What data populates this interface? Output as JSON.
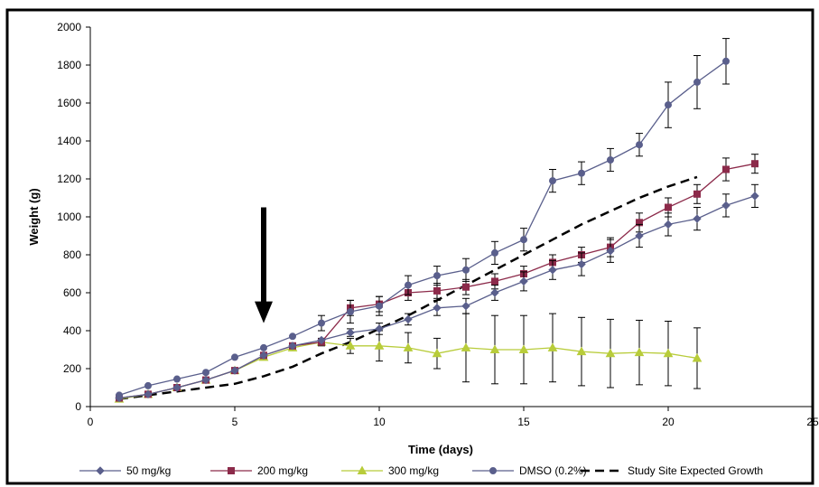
{
  "chart_data": {
    "type": "line",
    "title": "",
    "xlabel": "Time (days)",
    "ylabel": "Weight (g)",
    "xlim": [
      0,
      25
    ],
    "ylim": [
      0,
      2000
    ],
    "x_ticks": [
      "0",
      "5",
      "10",
      "15",
      "20",
      "25"
    ],
    "y_ticks": [
      "0",
      "200",
      "400",
      "600",
      "800",
      "1000",
      "1200",
      "1400",
      "1600",
      "1800",
      "2000"
    ],
    "grid": false,
    "legend_position": "bottom",
    "annotation": {
      "type": "arrow-down",
      "x": 6,
      "y_top": 1050,
      "y_tip": 440
    },
    "series": [
      {
        "name": "50 mg/kg",
        "marker": "diamond",
        "color": "#5a5f8c",
        "x": [
          1,
          2,
          3,
          4,
          5,
          6,
          7,
          8,
          9,
          10,
          11,
          12,
          13,
          14,
          15,
          16,
          17,
          18,
          19,
          20,
          21,
          22,
          23
        ],
        "y": [
          45,
          65,
          100,
          140,
          190,
          270,
          320,
          350,
          390,
          410,
          460,
          520,
          530,
          600,
          660,
          720,
          750,
          820,
          900,
          960,
          990,
          1060,
          1110
        ],
        "err": [
          0,
          0,
          0,
          0,
          0,
          0,
          0,
          0,
          20,
          30,
          30,
          40,
          40,
          40,
          50,
          50,
          60,
          60,
          60,
          60,
          60,
          60,
          60
        ]
      },
      {
        "name": "200 mg/kg",
        "marker": "square",
        "color": "#8c2a4a",
        "x": [
          1,
          2,
          3,
          4,
          5,
          6,
          7,
          8,
          9,
          10,
          11,
          12,
          13,
          14,
          15,
          16,
          17,
          18,
          19,
          20,
          21,
          22,
          23
        ],
        "y": [
          45,
          65,
          100,
          140,
          190,
          270,
          320,
          340,
          520,
          540,
          600,
          610,
          630,
          660,
          700,
          760,
          800,
          840,
          970,
          1050,
          1120,
          1250,
          1280
        ],
        "err": [
          0,
          0,
          0,
          0,
          0,
          0,
          0,
          0,
          40,
          40,
          40,
          40,
          40,
          40,
          40,
          40,
          40,
          50,
          50,
          50,
          50,
          60,
          50
        ]
      },
      {
        "name": "300 mg/kg",
        "marker": "triangle",
        "color": "#b8cc3a",
        "x": [
          1,
          2,
          3,
          4,
          5,
          6,
          7,
          8,
          9,
          10,
          11,
          12,
          13,
          14,
          15,
          16,
          17,
          18,
          19,
          20,
          21
        ],
        "y": [
          40,
          65,
          100,
          140,
          190,
          260,
          310,
          340,
          320,
          320,
          310,
          280,
          310,
          300,
          300,
          310,
          290,
          280,
          285,
          280,
          255
        ],
        "err": [
          0,
          0,
          0,
          0,
          0,
          0,
          0,
          20,
          40,
          80,
          80,
          80,
          180,
          180,
          180,
          180,
          180,
          180,
          170,
          170,
          160
        ]
      },
      {
        "name": "DMSO (0.2%)",
        "marker": "circle",
        "color": "#5a5f8c",
        "x": [
          1,
          2,
          3,
          4,
          5,
          6,
          7,
          8,
          9,
          10,
          11,
          12,
          13,
          14,
          15,
          16,
          17,
          18,
          19,
          20,
          21,
          22
        ],
        "y": [
          60,
          110,
          145,
          180,
          260,
          310,
          370,
          440,
          500,
          530,
          640,
          690,
          720,
          810,
          880,
          1190,
          1230,
          1300,
          1380,
          1590,
          1710,
          1820
        ],
        "err": [
          0,
          0,
          0,
          0,
          0,
          0,
          0,
          40,
          60,
          50,
          50,
          50,
          60,
          60,
          60,
          60,
          60,
          60,
          60,
          120,
          140,
          120
        ]
      },
      {
        "name": "Study Site Expected Growth",
        "dashed": true,
        "color": "#000000",
        "x": [
          1,
          3,
          5,
          6,
          7,
          8,
          9,
          10,
          11,
          12,
          13,
          14,
          15,
          16,
          17,
          18,
          19,
          20,
          21
        ],
        "y": [
          40,
          80,
          120,
          160,
          210,
          280,
          340,
          410,
          480,
          560,
          640,
          720,
          800,
          880,
          960,
          1030,
          1100,
          1160,
          1210
        ]
      }
    ]
  }
}
